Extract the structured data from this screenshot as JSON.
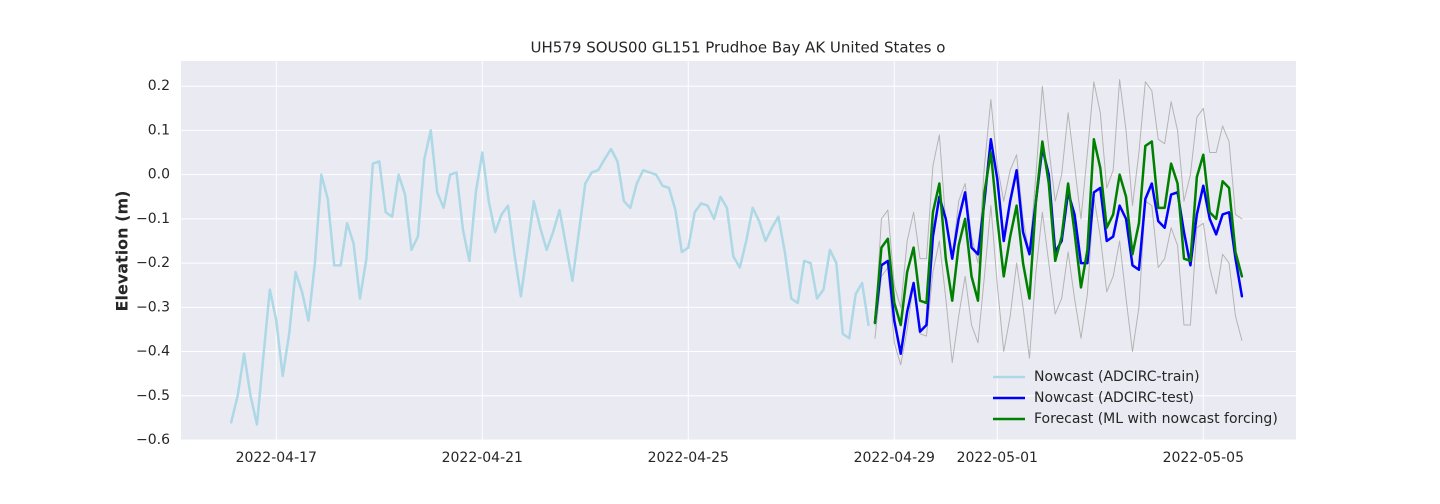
{
  "chart_data": {
    "type": "line",
    "title": "UH579 SOUS00 GL151 Prudhoe Bay AK United States o",
    "ylabel": "Elevation (m)",
    "xlim": [
      19097.15,
      19118.8
    ],
    "ylim": [
      -0.6,
      0.257
    ],
    "xticks": [
      {
        "value": 19099,
        "label": "2022-04-17"
      },
      {
        "value": 19103,
        "label": "2022-04-21"
      },
      {
        "value": 19107,
        "label": "2022-04-25"
      },
      {
        "value": 19111,
        "label": "2022-04-29"
      },
      {
        "value": 19113,
        "label": "2022-05-01"
      },
      {
        "value": 19117,
        "label": "2022-05-05"
      }
    ],
    "yticks": [
      {
        "value": -0.6,
        "label": "−0.6"
      },
      {
        "value": -0.5,
        "label": "−0.5"
      },
      {
        "value": -0.4,
        "label": "−0.4"
      },
      {
        "value": -0.3,
        "label": "−0.3"
      },
      {
        "value": -0.2,
        "label": "−0.2"
      },
      {
        "value": -0.1,
        "label": "−0.1"
      },
      {
        "value": 0,
        "label": "0.0"
      },
      0.1,
      0.2
    ],
    "grid": true,
    "legend": "lower right",
    "series": [
      {
        "name": "Nowcast (ADCIRC-train)",
        "color": "#add8e6",
        "x": [
          19098.125,
          19098.25,
          19098.375,
          19098.5,
          19098.625,
          19098.75,
          19098.875,
          19099,
          19099.125,
          19099.25,
          19099.375,
          19099.5,
          19099.625,
          19099.75,
          19099.875,
          19100,
          19100.125,
          19100.25,
          19100.375,
          19100.5,
          19100.625,
          19100.75,
          19100.875,
          19101,
          19101.125,
          19101.25,
          19101.375,
          19101.5,
          19101.625,
          19101.75,
          19101.875,
          19102,
          19102.125,
          19102.25,
          19102.375,
          19102.5,
          19102.625,
          19102.75,
          19102.875,
          19103,
          19103.125,
          19103.25,
          19103.375,
          19103.5,
          19103.625,
          19103.75,
          19103.875,
          19104,
          19104.125,
          19104.25,
          19104.375,
          19104.5,
          19104.625,
          19104.75,
          19104.875,
          19105,
          19105.125,
          19105.25,
          19105.375,
          19105.5,
          19105.625,
          19105.75,
          19105.875,
          19106,
          19106.125,
          19106.25,
          19106.375,
          19106.5,
          19106.625,
          19106.75,
          19106.875,
          19107,
          19107.125,
          19107.25,
          19107.375,
          19107.5,
          19107.625,
          19107.75,
          19107.875,
          19108,
          19108.125,
          19108.25,
          19108.375,
          19108.5,
          19108.625,
          19108.75,
          19108.875,
          19109,
          19109.125,
          19109.25,
          19109.375,
          19109.5,
          19109.625,
          19109.75,
          19109.875,
          19110,
          19110.125,
          19110.25,
          19110.375,
          19110.5
        ],
        "values": [
          -0.56,
          -0.5,
          -0.405,
          -0.5,
          -0.565,
          -0.41,
          -0.26,
          -0.33,
          -0.455,
          -0.36,
          -0.22,
          -0.265,
          -0.33,
          -0.2,
          0.0,
          -0.055,
          -0.205,
          -0.205,
          -0.11,
          -0.155,
          -0.28,
          -0.19,
          0.025,
          0.03,
          -0.085,
          -0.095,
          0.0,
          -0.045,
          -0.17,
          -0.14,
          0.035,
          0.1,
          -0.04,
          -0.075,
          0.0,
          0.005,
          -0.125,
          -0.195,
          -0.04,
          0.05,
          -0.06,
          -0.13,
          -0.09,
          -0.07,
          -0.18,
          -0.275,
          -0.17,
          -0.06,
          -0.12,
          -0.17,
          -0.13,
          -0.08,
          -0.16,
          -0.24,
          -0.13,
          -0.02,
          0.005,
          0.01,
          0.035,
          0.058,
          0.03,
          -0.06,
          -0.075,
          -0.02,
          0.01,
          0.005,
          0.0,
          -0.025,
          -0.03,
          -0.08,
          -0.175,
          -0.165,
          -0.085,
          -0.065,
          -0.07,
          -0.1,
          -0.05,
          -0.075,
          -0.185,
          -0.21,
          -0.15,
          -0.075,
          -0.105,
          -0.15,
          -0.12,
          -0.095,
          -0.175,
          -0.28,
          -0.29,
          -0.195,
          -0.2,
          -0.28,
          -0.26,
          -0.17,
          -0.2,
          -0.36,
          -0.37,
          -0.27,
          -0.245,
          -0.34
        ]
      },
      {
        "name": "Nowcast (ADCIRC-test)",
        "color": "#0000ff",
        "x": [
          19110.625,
          19110.75,
          19110.875,
          19111,
          19111.125,
          19111.25,
          19111.375,
          19111.5,
          19111.625,
          19111.75,
          19111.875,
          19112,
          19112.125,
          19112.25,
          19112.375,
          19112.5,
          19112.625,
          19112.75,
          19112.875,
          19113,
          19113.125,
          19113.25,
          19113.375,
          19113.5,
          19113.625,
          19113.75,
          19113.875,
          19114,
          19114.125,
          19114.25,
          19114.375,
          19114.5,
          19114.625,
          19114.75,
          19114.875,
          19115,
          19115.125,
          19115.25,
          19115.375,
          19115.5,
          19115.625,
          19115.75,
          19115.875,
          19116,
          19116.125,
          19116.25,
          19116.375,
          19116.5,
          19116.625,
          19116.75,
          19116.875,
          19117,
          19117.125,
          19117.25,
          19117.375,
          19117.5,
          19117.625,
          19117.75
        ],
        "values": [
          -0.335,
          -0.205,
          -0.195,
          -0.33,
          -0.405,
          -0.31,
          -0.245,
          -0.355,
          -0.34,
          -0.14,
          -0.05,
          -0.1,
          -0.19,
          -0.1,
          -0.04,
          -0.165,
          -0.18,
          -0.06,
          0.08,
          -0.01,
          -0.15,
          -0.06,
          0.01,
          -0.13,
          -0.18,
          -0.06,
          0.06,
          0.0,
          -0.175,
          -0.15,
          -0.04,
          -0.09,
          -0.2,
          -0.2,
          -0.04,
          -0.03,
          -0.15,
          -0.14,
          -0.07,
          -0.1,
          -0.205,
          -0.215,
          -0.055,
          -0.02,
          -0.105,
          -0.12,
          -0.045,
          -0.04,
          -0.13,
          -0.205,
          -0.09,
          -0.025,
          -0.1,
          -0.135,
          -0.09,
          -0.085,
          -0.19,
          -0.275
        ]
      },
      {
        "name": "Forecast (ML with nowcast forcing)",
        "color": "#008000",
        "x": [
          19110.625,
          19110.75,
          19110.875,
          19111,
          19111.125,
          19111.25,
          19111.375,
          19111.5,
          19111.625,
          19111.75,
          19111.875,
          19112,
          19112.125,
          19112.25,
          19112.375,
          19112.5,
          19112.625,
          19112.75,
          19112.875,
          19113,
          19113.125,
          19113.25,
          19113.375,
          19113.5,
          19113.625,
          19113.75,
          19113.875,
          19114,
          19114.125,
          19114.25,
          19114.375,
          19114.5,
          19114.625,
          19114.75,
          19114.875,
          19115,
          19115.125,
          19115.25,
          19115.375,
          19115.5,
          19115.625,
          19115.75,
          19115.875,
          19116,
          19116.125,
          19116.25,
          19116.375,
          19116.5,
          19116.625,
          19116.75,
          19116.875,
          19117,
          19117.125,
          19117.25,
          19117.375,
          19117.5,
          19117.625,
          19117.75
        ],
        "values": [
          -0.335,
          -0.165,
          -0.145,
          -0.29,
          -0.34,
          -0.22,
          -0.165,
          -0.285,
          -0.29,
          -0.085,
          -0.02,
          -0.19,
          -0.285,
          -0.16,
          -0.1,
          -0.23,
          -0.285,
          -0.04,
          0.05,
          -0.1,
          -0.23,
          -0.14,
          -0.07,
          -0.2,
          -0.28,
          -0.06,
          0.075,
          -0.02,
          -0.195,
          -0.14,
          -0.02,
          -0.13,
          -0.255,
          -0.17,
          0.08,
          0.015,
          -0.12,
          -0.09,
          0.0,
          -0.05,
          -0.18,
          -0.11,
          0.065,
          0.075,
          -0.075,
          -0.075,
          0.025,
          -0.02,
          -0.19,
          -0.195,
          -0.005,
          0.045,
          -0.085,
          -0.1,
          -0.015,
          -0.03,
          -0.175,
          -0.23
        ]
      },
      {
        "color": "#b4b4b4",
        "x": [
          19110.625,
          19110.75,
          19110.875,
          19111,
          19111.125,
          19111.25,
          19111.375,
          19111.5,
          19111.625,
          19111.75,
          19111.875,
          19112,
          19112.125,
          19112.25,
          19112.375,
          19112.5,
          19112.625,
          19112.75,
          19112.875,
          19113,
          19113.125,
          19113.25,
          19113.375,
          19113.5,
          19113.625,
          19113.75,
          19113.875,
          19114,
          19114.125,
          19114.25,
          19114.375,
          19114.5,
          19114.625,
          19114.75,
          19114.875,
          19115,
          19115.125,
          19115.25,
          19115.375,
          19115.5,
          19115.625,
          19115.75,
          19115.875,
          19116,
          19116.125,
          19116.25,
          19116.375,
          19116.5,
          19116.625,
          19116.75,
          19116.875,
          19117,
          19117.125,
          19117.25,
          19117.375,
          19117.5,
          19117.625,
          19117.75
        ],
        "values": [
          -0.34,
          -0.1,
          -0.08,
          -0.25,
          -0.3,
          -0.15,
          -0.085,
          -0.19,
          -0.19,
          0.02,
          0.09,
          -0.11,
          -0.19,
          -0.06,
          -0.02,
          -0.14,
          -0.2,
          0.02,
          0.17,
          0.02,
          -0.06,
          0.01,
          0.045,
          -0.1,
          -0.18,
          0.0,
          0.2,
          0.06,
          -0.06,
          0.0,
          0.14,
          0.02,
          -0.1,
          0.05,
          0.21,
          0.14,
          -0.03,
          0.01,
          0.215,
          0.1,
          -0.07,
          0.05,
          0.21,
          0.19,
          0.08,
          0.07,
          0.165,
          0.1,
          -0.06,
          0.0,
          0.13,
          0.15,
          0.05,
          0.05,
          0.11,
          0.075,
          -0.09,
          -0.1
        ]
      },
      {
        "color": "#b4b4b4",
        "x": [
          19110.625,
          19110.75,
          19110.875,
          19111,
          19111.125,
          19111.25,
          19111.375,
          19111.5,
          19111.625,
          19111.75,
          19111.875,
          19112,
          19112.125,
          19112.25,
          19112.375,
          19112.5,
          19112.625,
          19112.75,
          19112.875,
          19113,
          19113.125,
          19113.25,
          19113.375,
          19113.5,
          19113.625,
          19113.75,
          19113.875,
          19114,
          19114.125,
          19114.25,
          19114.375,
          19114.5,
          19114.625,
          19114.75,
          19114.875,
          19115,
          19115.125,
          19115.25,
          19115.375,
          19115.5,
          19115.625,
          19115.75,
          19115.875,
          19116,
          19116.125,
          19116.25,
          19116.375,
          19116.5,
          19116.625,
          19116.75,
          19116.875,
          19117,
          19117.125,
          19117.25,
          19117.375,
          19117.5,
          19117.625,
          19117.75
        ],
        "values": [
          -0.37,
          -0.23,
          -0.21,
          -0.38,
          -0.43,
          -0.35,
          -0.245,
          -0.36,
          -0.365,
          -0.22,
          -0.15,
          -0.28,
          -0.425,
          -0.32,
          -0.23,
          -0.34,
          -0.38,
          -0.23,
          -0.07,
          -0.25,
          -0.4,
          -0.32,
          -0.2,
          -0.3,
          -0.415,
          -0.22,
          -0.085,
          -0.2,
          -0.315,
          -0.28,
          -0.175,
          -0.28,
          -0.37,
          -0.27,
          -0.05,
          -0.14,
          -0.265,
          -0.23,
          -0.15,
          -0.28,
          -0.4,
          -0.3,
          -0.06,
          -0.07,
          -0.21,
          -0.19,
          -0.12,
          -0.16,
          -0.34,
          -0.34,
          -0.12,
          -0.11,
          -0.21,
          -0.27,
          -0.18,
          -0.2,
          -0.32,
          -0.375
        ]
      }
    ]
  }
}
